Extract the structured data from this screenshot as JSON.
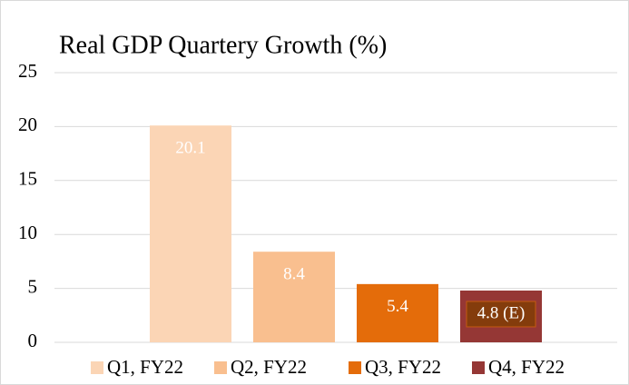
{
  "chart_data": {
    "type": "bar",
    "title": "Real GDP Quartery Growth (%)",
    "series": [
      {
        "name": "Q1, FY22",
        "color": "#fbd5b5",
        "values": [
          20.1
        ]
      },
      {
        "name": "Q2, FY22",
        "color": "#f9bf8f",
        "values": [
          8.4
        ]
      },
      {
        "name": "Q3, FY22",
        "color": "#e46c0a",
        "values": [
          5.4
        ]
      },
      {
        "name": "Q4, FY22",
        "color": "#953735",
        "values": [
          4.8
        ],
        "value_labels": [
          "4.8 (E)"
        ]
      }
    ],
    "ylim": [
      0,
      25
    ],
    "yticks": [
      0,
      5,
      10,
      15,
      20,
      25
    ],
    "grid": true,
    "legend": "bottom"
  }
}
